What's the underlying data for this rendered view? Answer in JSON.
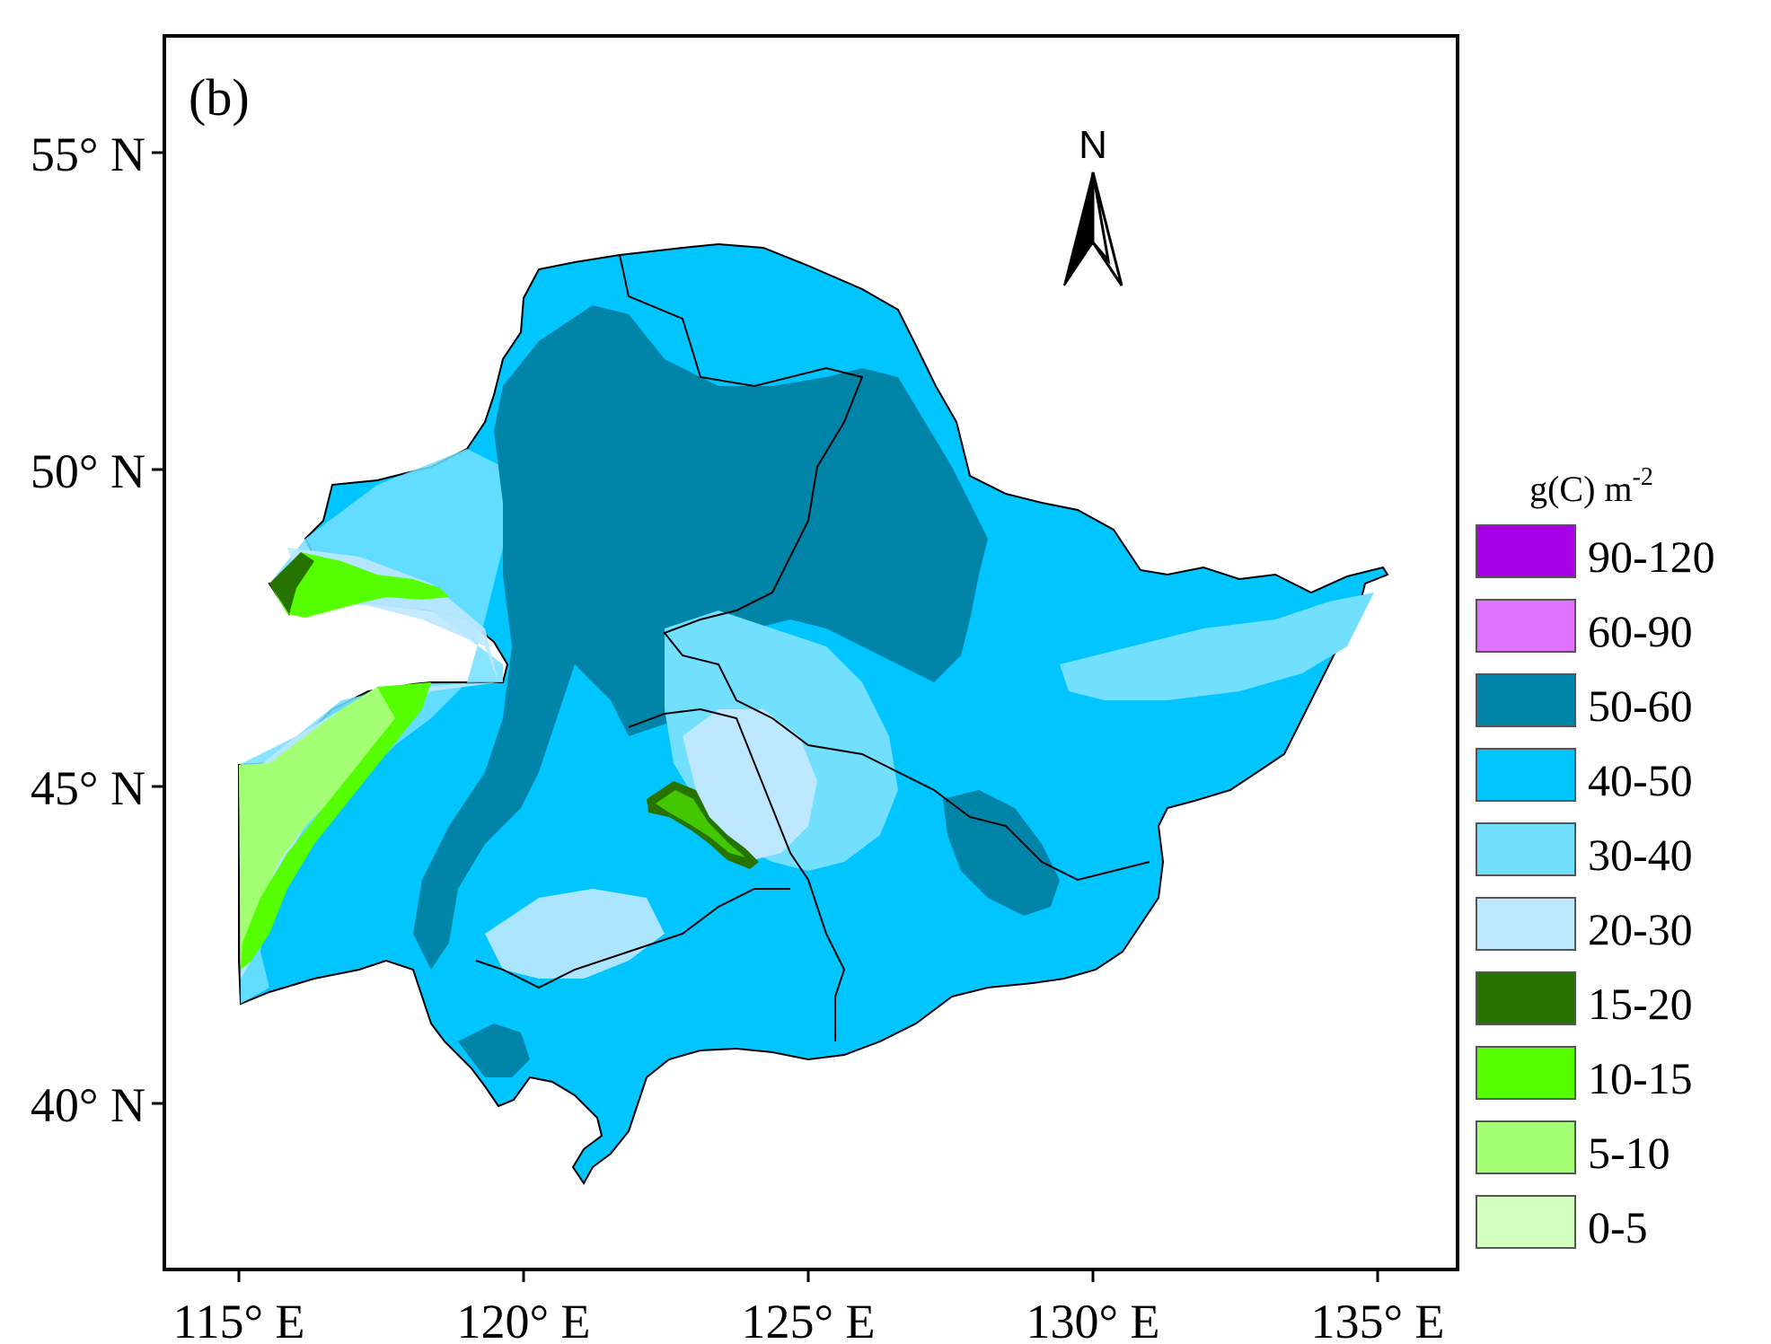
{
  "panel_label": "(b)",
  "north_arrow": {
    "label": "N"
  },
  "axes": {
    "x_ticks": [
      "115° E",
      "120° E",
      "125° E",
      "130° E",
      "135° E"
    ],
    "y_ticks": [
      "55° N",
      "50° N",
      "45° N",
      "40° N"
    ]
  },
  "legend": {
    "title": "g(C) m",
    "title_superscript": "-2",
    "items": [
      {
        "label": "90-120",
        "color": "#A800E6"
      },
      {
        "label": "60-90",
        "color": "#DF73FF"
      },
      {
        "label": "50-60",
        "color": "#0084A8"
      },
      {
        "label": "40-50",
        "color": "#00C5FF"
      },
      {
        "label": "30-40",
        "color": "#73DFFF"
      },
      {
        "label": "20-30",
        "color": "#BEE8FF"
      },
      {
        "label": "15-20",
        "color": "#267300"
      },
      {
        "label": "10-15",
        "color": "#55FF00"
      },
      {
        "label": "5-10",
        "color": "#A3FF73"
      },
      {
        "label": "0-5",
        "color": "#D3FFBE"
      }
    ]
  }
}
